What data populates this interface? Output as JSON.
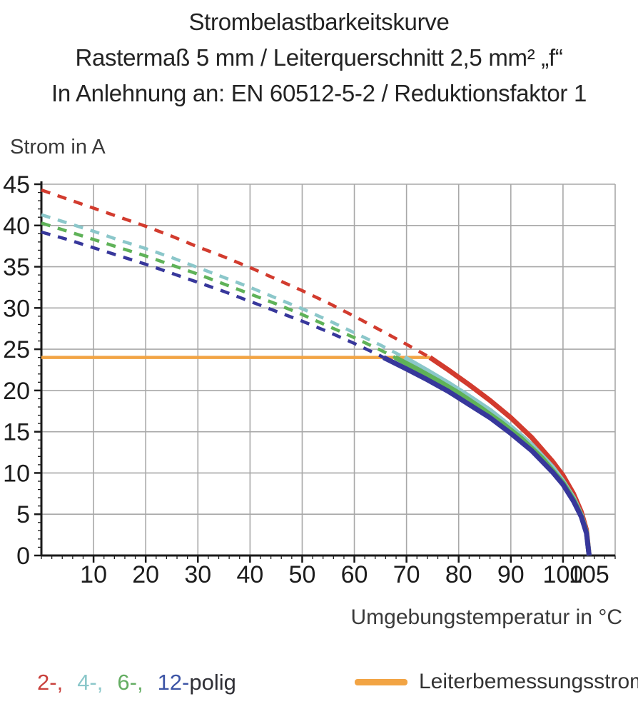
{
  "title": {
    "line1": "Strombelastbarkeitskurve",
    "line2": "Rastermaß 5 mm / Leiterquerschnitt 2,5 mm² „f“",
    "line3": "In Anlehnung an: EN 60512-5-2 / Reduktionsfaktor 1"
  },
  "chart_data": {
    "type": "line",
    "title": "Strombelastbarkeitskurve",
    "xlabel": "Umgebungstemperatur in °C",
    "ylabel": "Strom in A",
    "xlim": [
      0,
      110
    ],
    "ylim": [
      0,
      45
    ],
    "x_tick_labels": [
      10,
      20,
      30,
      40,
      50,
      60,
      70,
      80,
      90,
      100,
      105
    ],
    "x_major_ticks": [
      10,
      20,
      30,
      40,
      50,
      60,
      70,
      80,
      90,
      100
    ],
    "x_minor_step": 2,
    "y_tick_labels": [
      0,
      5,
      10,
      15,
      20,
      25,
      30,
      35,
      40,
      45
    ],
    "y_major_ticks": [
      0,
      5,
      10,
      15,
      20,
      25,
      30,
      35,
      40,
      45
    ],
    "y_minor_step": 1,
    "grid": {
      "x_step": 10,
      "y_step": 5,
      "color": "#a8a8a8",
      "frame_right": 110,
      "frame_top": 45
    },
    "axis_color": "#1a1a1a",
    "tick_label_color": "#1c1c1c",
    "legend_position": "bottom",
    "series": [
      {
        "name": "2-polig",
        "legend_label": "2-,",
        "color": "#d23b2e",
        "label_color": "#c9403c",
        "dashed": [
          [
            0,
            44.3
          ],
          [
            5,
            43.2
          ],
          [
            10,
            42.1
          ],
          [
            15,
            41.0
          ],
          [
            20,
            39.9
          ],
          [
            25,
            38.7
          ],
          [
            30,
            37.4
          ],
          [
            35,
            36.2
          ],
          [
            40,
            34.9
          ],
          [
            45,
            33.5
          ],
          [
            50,
            32.1
          ],
          [
            55,
            30.6
          ],
          [
            60,
            29.0
          ],
          [
            65,
            27.3
          ],
          [
            70,
            25.6
          ],
          [
            74.5,
            24.0
          ]
        ],
        "solid": [
          [
            74.5,
            24.0
          ],
          [
            78,
            22.5
          ],
          [
            82,
            20.7
          ],
          [
            86,
            18.8
          ],
          [
            90,
            16.7
          ],
          [
            94,
            14.3
          ],
          [
            98,
            11.4
          ],
          [
            100,
            9.7
          ],
          [
            102,
            7.5
          ],
          [
            103.5,
            5.3
          ],
          [
            104.5,
            3.1
          ],
          [
            105,
            0
          ]
        ]
      },
      {
        "name": "4-polig",
        "legend_label": "4-,",
        "color": "#8bc7ca",
        "label_color": "#8bc7ca",
        "dashed": [
          [
            0,
            41.3
          ],
          [
            5,
            40.3
          ],
          [
            10,
            39.3
          ],
          [
            15,
            38.2
          ],
          [
            20,
            37.2
          ],
          [
            25,
            36.1
          ],
          [
            30,
            34.9
          ],
          [
            35,
            33.7
          ],
          [
            40,
            32.5
          ],
          [
            45,
            31.2
          ],
          [
            50,
            29.9
          ],
          [
            55,
            28.5
          ],
          [
            60,
            27.0
          ],
          [
            65,
            25.5
          ],
          [
            69.6,
            24.0
          ]
        ],
        "solid": [
          [
            69.6,
            24.0
          ],
          [
            74,
            22.4
          ],
          [
            78,
            20.9
          ],
          [
            82,
            19.3
          ],
          [
            86,
            17.6
          ],
          [
            90,
            15.6
          ],
          [
            94,
            13.4
          ],
          [
            98,
            10.7
          ],
          [
            100,
            9.0
          ],
          [
            102,
            7.0
          ],
          [
            103.5,
            4.9
          ],
          [
            104.5,
            2.8
          ],
          [
            105,
            0
          ]
        ]
      },
      {
        "name": "6-polig",
        "legend_label": "6-,",
        "color": "#5fb258",
        "label_color": "#64ad62",
        "dashed": [
          [
            0,
            40.3
          ],
          [
            5,
            39.3
          ],
          [
            10,
            38.3
          ],
          [
            15,
            37.3
          ],
          [
            20,
            36.3
          ],
          [
            25,
            35.2
          ],
          [
            30,
            34.1
          ],
          [
            35,
            32.9
          ],
          [
            40,
            31.7
          ],
          [
            45,
            30.5
          ],
          [
            50,
            29.2
          ],
          [
            55,
            27.8
          ],
          [
            60,
            26.4
          ],
          [
            65,
            24.9
          ],
          [
            67.8,
            24.0
          ]
        ],
        "solid": [
          [
            67.8,
            24.0
          ],
          [
            72,
            22.6
          ],
          [
            76,
            21.2
          ],
          [
            80,
            19.7
          ],
          [
            84,
            18.0
          ],
          [
            88,
            16.2
          ],
          [
            92,
            14.2
          ],
          [
            96,
            11.8
          ],
          [
            100,
            8.8
          ],
          [
            102,
            6.8
          ],
          [
            103.5,
            4.8
          ],
          [
            104.5,
            2.8
          ],
          [
            105,
            0
          ]
        ]
      },
      {
        "name": "12-polig",
        "legend_label": "12-",
        "color": "#37379b",
        "label_color": "#3d55a6",
        "dashed": [
          [
            0,
            39.2
          ],
          [
            5,
            38.3
          ],
          [
            10,
            37.3
          ],
          [
            15,
            36.3
          ],
          [
            20,
            35.3
          ],
          [
            25,
            34.2
          ],
          [
            30,
            33.1
          ],
          [
            35,
            32.0
          ],
          [
            40,
            30.8
          ],
          [
            45,
            29.6
          ],
          [
            50,
            28.4
          ],
          [
            55,
            27.1
          ],
          [
            60,
            25.7
          ],
          [
            65,
            24.2
          ],
          [
            65.6,
            24.0
          ]
        ],
        "solid": [
          [
            65.6,
            24.0
          ],
          [
            70,
            22.6
          ],
          [
            74,
            21.3
          ],
          [
            78,
            19.9
          ],
          [
            82,
            18.3
          ],
          [
            86,
            16.7
          ],
          [
            90,
            14.8
          ],
          [
            94,
            12.7
          ],
          [
            98,
            10.1
          ],
          [
            100,
            8.6
          ],
          [
            102,
            6.6
          ],
          [
            103.5,
            4.7
          ],
          [
            104.5,
            2.7
          ],
          [
            105,
            0
          ]
        ]
      }
    ],
    "reference_line": {
      "name": "Leiterbemessungsstrom",
      "value": 24,
      "x_start": 0,
      "x_end": 74.5,
      "color": "#f2a444"
    }
  },
  "legend": {
    "polig_suffix": "polig",
    "polig_suffix_color": "#2f2f35",
    "rated_label": "Leiterbemessungsstrom"
  }
}
